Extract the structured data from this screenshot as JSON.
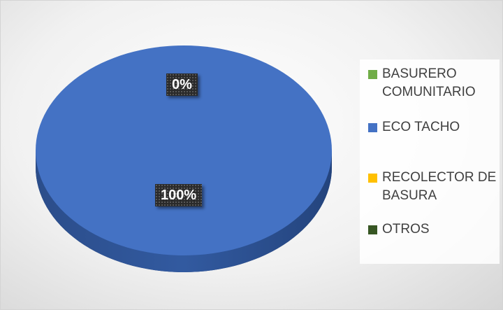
{
  "chart_data": {
    "type": "pie",
    "style": "3d",
    "categories": [
      "BASURERO COMUNITARIO",
      "ECO TACHO",
      "RECOLECTOR DE BASURA",
      "OTROS"
    ],
    "values": [
      0,
      100,
      0,
      0
    ],
    "value_unit": "%",
    "colors": [
      "#70ad47",
      "#4472c4",
      "#ffc000",
      "#375623"
    ],
    "data_labels": [
      {
        "text": "0%",
        "category": "BASURERO COMUNITARIO"
      },
      {
        "text": "100%",
        "category": "ECO TACHO"
      }
    ],
    "legend_position": "right",
    "title": ""
  }
}
